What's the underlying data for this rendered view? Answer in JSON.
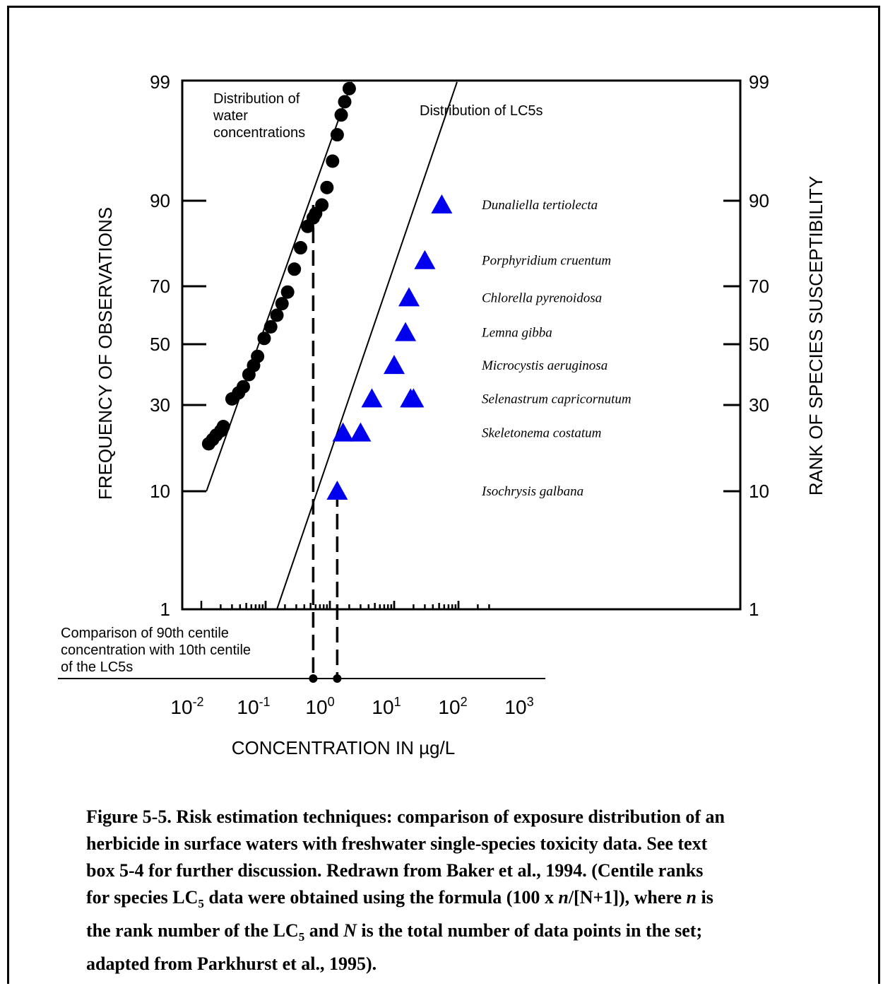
{
  "chart_data": {
    "type": "scatter",
    "xlabel": "CONCENTRATION IN µg/L",
    "ylabel_left": "FREQUENCY OF OBSERVATIONS",
    "ylabel_right": "RANK OF SPECIES SUSCEPTIBILITY",
    "x_scale": "log",
    "xlim": [
      0.01,
      1000
    ],
    "x_ticks": [
      {
        "base": "10",
        "exp": "-2"
      },
      {
        "base": "10",
        "exp": "-1"
      },
      {
        "base": "10",
        "exp": "0"
      },
      {
        "base": "10",
        "exp": "1"
      },
      {
        "base": "10",
        "exp": "2"
      },
      {
        "base": "10",
        "exp": "3"
      }
    ],
    "y_scale": "probability",
    "y_ticks": [
      "1",
      "10",
      "30",
      "50",
      "70",
      "90",
      "99"
    ],
    "series": [
      {
        "name": "Distribution of water concentrations",
        "marker": "circle",
        "color": "#000000",
        "points": [
          [
            0.013,
            21
          ],
          [
            0.015,
            22
          ],
          [
            0.017,
            23
          ],
          [
            0.02,
            24
          ],
          [
            0.022,
            25
          ],
          [
            0.03,
            32
          ],
          [
            0.038,
            34
          ],
          [
            0.045,
            36
          ],
          [
            0.055,
            40
          ],
          [
            0.065,
            43
          ],
          [
            0.075,
            46
          ],
          [
            0.095,
            52
          ],
          [
            0.12,
            56
          ],
          [
            0.15,
            60
          ],
          [
            0.18,
            64
          ],
          [
            0.22,
            68
          ],
          [
            0.28,
            74
          ],
          [
            0.35,
            79
          ],
          [
            0.45,
            84
          ],
          [
            0.55,
            86
          ],
          [
            0.6,
            87
          ],
          [
            0.75,
            89
          ],
          [
            0.9,
            91
          ],
          [
            1.1,
            93
          ],
          [
            1.3,
            95
          ],
          [
            1.5,
            96.5
          ],
          [
            1.7,
            97.5
          ],
          [
            2.0,
            98.5
          ]
        ],
        "fit_line": [
          [
            0.012,
            10
          ],
          [
            2.2,
            99
          ]
        ]
      },
      {
        "name": "Distribution of LC5s",
        "marker": "triangle",
        "color": "#0000ee",
        "points": [
          {
            "x": 1.3,
            "y": 10,
            "label": "Isochrysis galbana"
          },
          {
            "x": 1.6,
            "y": 23.5,
            "label": "Skeletonema costatum"
          },
          {
            "x": 3.0,
            "y": 23.5,
            "label": ""
          },
          {
            "x": 4.5,
            "y": 32,
            "label": "Selenastrum capricornutum"
          },
          {
            "x": 18,
            "y": 32,
            "label": ""
          },
          {
            "x": 20,
            "y": 32,
            "label": ""
          },
          {
            "x": 10,
            "y": 43,
            "label": "Microcystis aeruginosa"
          },
          {
            "x": 15,
            "y": 54,
            "label": "Lemna gibba"
          },
          {
            "x": 17,
            "y": 66,
            "label": "Chlorella pyrenoidosa"
          },
          {
            "x": 30,
            "y": 76,
            "label": "Porphyridium cruentum"
          },
          {
            "x": 55,
            "y": 89,
            "label": "Dunaliella tertiolecta"
          }
        ],
        "fit_line": [
          [
            0.15,
            1
          ],
          [
            95,
            99
          ]
        ]
      }
    ],
    "annotations": {
      "water_label": [
        "Distribution of",
        "water",
        "concentrations"
      ],
      "lc5_label": "Distribution of LC5s",
      "comparison_label": [
        "Comparison of 90th centile",
        "concentration with 10th centile",
        "of the LC5s"
      ]
    },
    "comparison_markers": [
      {
        "centile": "90th centile of water concentrations",
        "x": 0.55
      },
      {
        "centile": "10th centile of LC5s",
        "x": 1.3
      }
    ]
  },
  "caption": {
    "lines": [
      {
        "parts": [
          {
            "t": "Figure 5-5.  Risk estimation techniques: comparison of exposure distribution of an"
          }
        ]
      },
      {
        "parts": [
          {
            "t": "herbicide in surface waters with freshwater single-species toxicity data.  See text"
          }
        ]
      },
      {
        "parts": [
          {
            "t": "box 5-4 for further discussion.  Redrawn from Baker et al., 1994.  (Centile ranks"
          }
        ]
      },
      {
        "parts": [
          {
            "t": "for species LC"
          },
          {
            "t": "5",
            "sub": true
          },
          {
            "t": " data were obtained using the formula (100 x "
          },
          {
            "t": "n",
            "i": true
          },
          {
            "t": "/[N+1]), where "
          },
          {
            "t": "n",
            "i": true
          },
          {
            "t": " is"
          }
        ]
      },
      {
        "parts": [
          {
            "t": "the rank number of the LC"
          },
          {
            "t": "5",
            "sub": true
          },
          {
            "t": " and "
          },
          {
            "t": "N",
            "i": true
          },
          {
            "t": " is the total number of data points in the set;"
          }
        ]
      },
      {
        "parts": [
          {
            "t": "adapted from Parkhurst et al., 1995)."
          }
        ]
      }
    ]
  }
}
